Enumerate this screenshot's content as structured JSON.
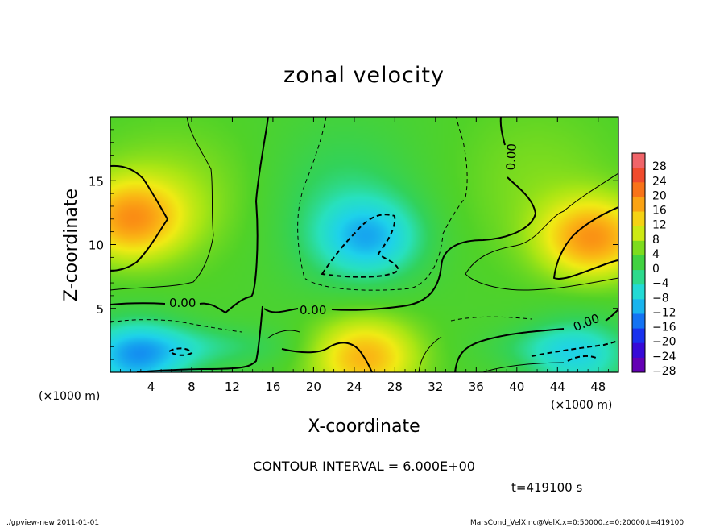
{
  "chart_data": {
    "type": "heatmap",
    "title": "zonal velocity",
    "xlabel": "X-coordinate",
    "ylabel": "Z-coordinate",
    "x_unit_label": "(×1000 m)",
    "y_unit_label": "(×1000 m)",
    "x_range": [
      0,
      50
    ],
    "y_range": [
      0,
      20
    ],
    "x_ticks": [
      "4",
      "8",
      "12",
      "16",
      "20",
      "24",
      "28",
      "32",
      "36",
      "40",
      "44",
      "48"
    ],
    "y_ticks": [
      "5",
      "10",
      "15"
    ],
    "colorbar_ticks": [
      "28",
      "24",
      "20",
      "16",
      "12",
      "8",
      "4",
      "0",
      "−4",
      "−8",
      "−12",
      "−16",
      "−20",
      "−24",
      "−28"
    ],
    "colorbar_range": [
      -30,
      30
    ],
    "contour_interval_text": "CONTOUR INTERVAL = 6.000E+00",
    "contour_labels": [
      "0.00",
      "0.00",
      "0.00",
      "0.00"
    ],
    "time_text": "t=419100 s",
    "features": [
      {
        "kind": "max",
        "x": 2.0,
        "z": 12.0,
        "value": 14
      },
      {
        "kind": "max",
        "x": 47.5,
        "z": 10.5,
        "value": 15
      },
      {
        "kind": "max",
        "x": 25.0,
        "z": 1.2,
        "value": 13
      },
      {
        "kind": "min",
        "x": 25.5,
        "z": 10.5,
        "value": -11
      },
      {
        "kind": "min",
        "x": 2.5,
        "z": 1.0,
        "value": -13
      },
      {
        "kind": "min",
        "x": 46.0,
        "z": 1.2,
        "value": -9
      }
    ]
  },
  "footer": {
    "left": "./gpview-new   2011-01-01",
    "right": "MarsCond_VelX.nc@VelX,x=0:50000,z=0:20000,t=419100"
  }
}
